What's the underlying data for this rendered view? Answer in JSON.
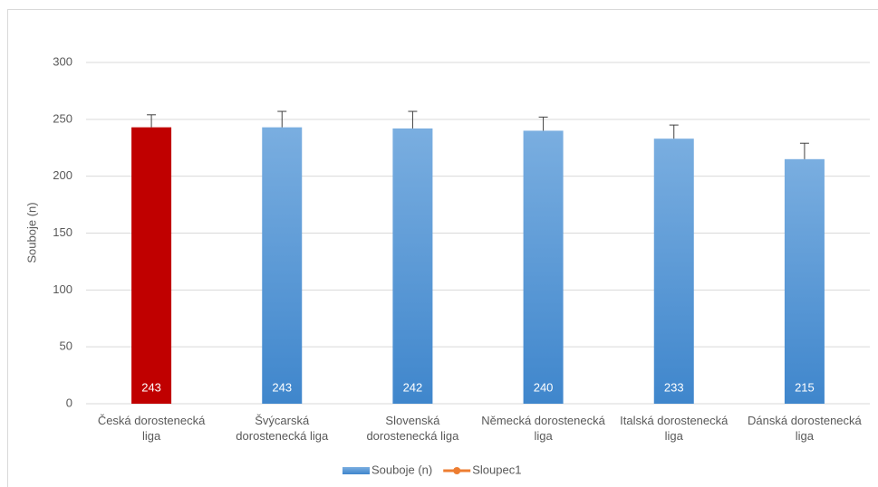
{
  "chart_data": {
    "type": "bar",
    "y_label": "Souboje (n)",
    "categories": [
      "Česká dorostenecká liga",
      "Švýcarská dorostenecká liga",
      "Slovenská dorostenecká liga",
      "Německá dorostenecká liga",
      "Italská dorostenecká liga",
      "Dánská dorostenecká liga"
    ],
    "series": [
      {
        "name": "Souboje (n)",
        "color": "#5b9bd5",
        "values": [
          243,
          243,
          242,
          240,
          233,
          215
        ],
        "errors": [
          11,
          14,
          15,
          12,
          12,
          14
        ],
        "point_colors": [
          "#c00000",
          "#5b9bd5",
          "#5b9bd5",
          "#5b9bd5",
          "#5b9bd5",
          "#5b9bd5"
        ]
      },
      {
        "name": "Sloupec1",
        "color": "#ed7d31",
        "type": "line",
        "values": [
          null,
          null,
          null,
          null,
          null,
          null
        ]
      }
    ],
    "ylim": [
      0,
      300
    ],
    "yticks": [
      0,
      50,
      100,
      150,
      200,
      250,
      300
    ],
    "grid": true,
    "legend": "bottom"
  }
}
